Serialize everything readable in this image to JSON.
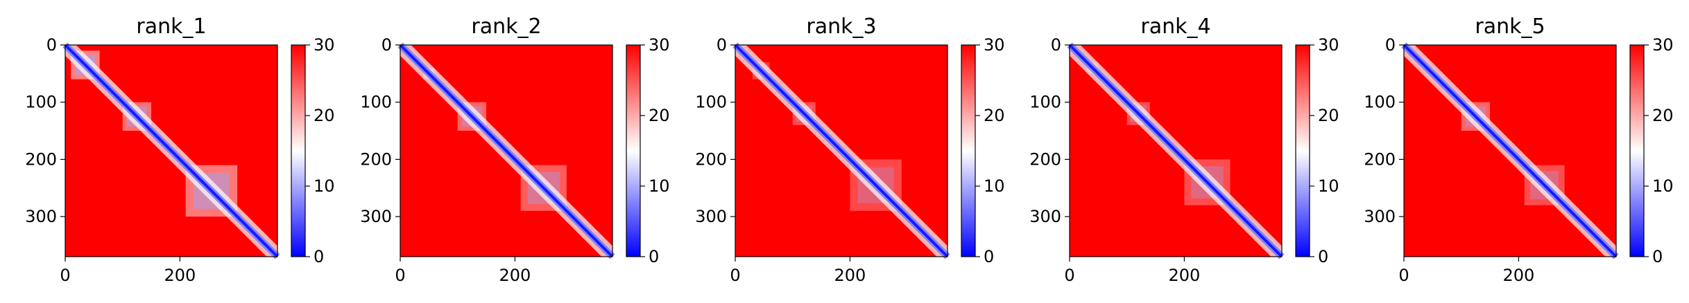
{
  "figure": {
    "colormap": {
      "name": "bwr",
      "low": "#0000ff",
      "mid": "#ffffff",
      "high": "#ff0000"
    },
    "colorbar": {
      "min": 0,
      "max": 30,
      "ticks": [
        "0",
        "10",
        "20",
        "30"
      ]
    }
  },
  "chart_data": [
    {
      "type": "heatmap",
      "title": "rank_1",
      "size": 370,
      "xticks": [
        "0",
        "200"
      ],
      "yticks": [
        "0",
        "100",
        "200",
        "300"
      ],
      "blocks": [
        [
          10,
          60
        ],
        [
          100,
          150
        ],
        [
          210,
          300
        ]
      ],
      "block_strength": [
        0.9,
        0.8,
        0.85
      ]
    },
    {
      "type": "heatmap",
      "title": "rank_2",
      "size": 370,
      "xticks": [
        "0",
        "200"
      ],
      "yticks": [
        "0",
        "100",
        "200",
        "300"
      ],
      "blocks": [
        [
          40,
          60
        ],
        [
          100,
          150
        ],
        [
          210,
          290
        ]
      ],
      "block_strength": [
        0.5,
        0.7,
        0.65
      ]
    },
    {
      "type": "heatmap",
      "title": "rank_3",
      "size": 370,
      "xticks": [
        "0",
        "200"
      ],
      "yticks": [
        "0",
        "100",
        "200",
        "300"
      ],
      "blocks": [
        [
          30,
          60
        ],
        [
          100,
          140
        ],
        [
          200,
          290
        ]
      ],
      "block_strength": [
        0.45,
        0.55,
        0.5
      ]
    },
    {
      "type": "heatmap",
      "title": "rank_4",
      "size": 370,
      "xticks": [
        "0",
        "200"
      ],
      "yticks": [
        "0",
        "100",
        "200",
        "300"
      ],
      "blocks": [
        [
          30,
          50
        ],
        [
          100,
          140
        ],
        [
          200,
          280
        ]
      ],
      "block_strength": [
        0.4,
        0.55,
        0.55
      ]
    },
    {
      "type": "heatmap",
      "title": "rank_5",
      "size": 370,
      "xticks": [
        "0",
        "200"
      ],
      "yticks": [
        "0",
        "100",
        "200",
        "300"
      ],
      "blocks": [
        [
          100,
          150
        ],
        [
          210,
          280
        ]
      ],
      "block_strength": [
        0.7,
        0.55
      ]
    }
  ]
}
